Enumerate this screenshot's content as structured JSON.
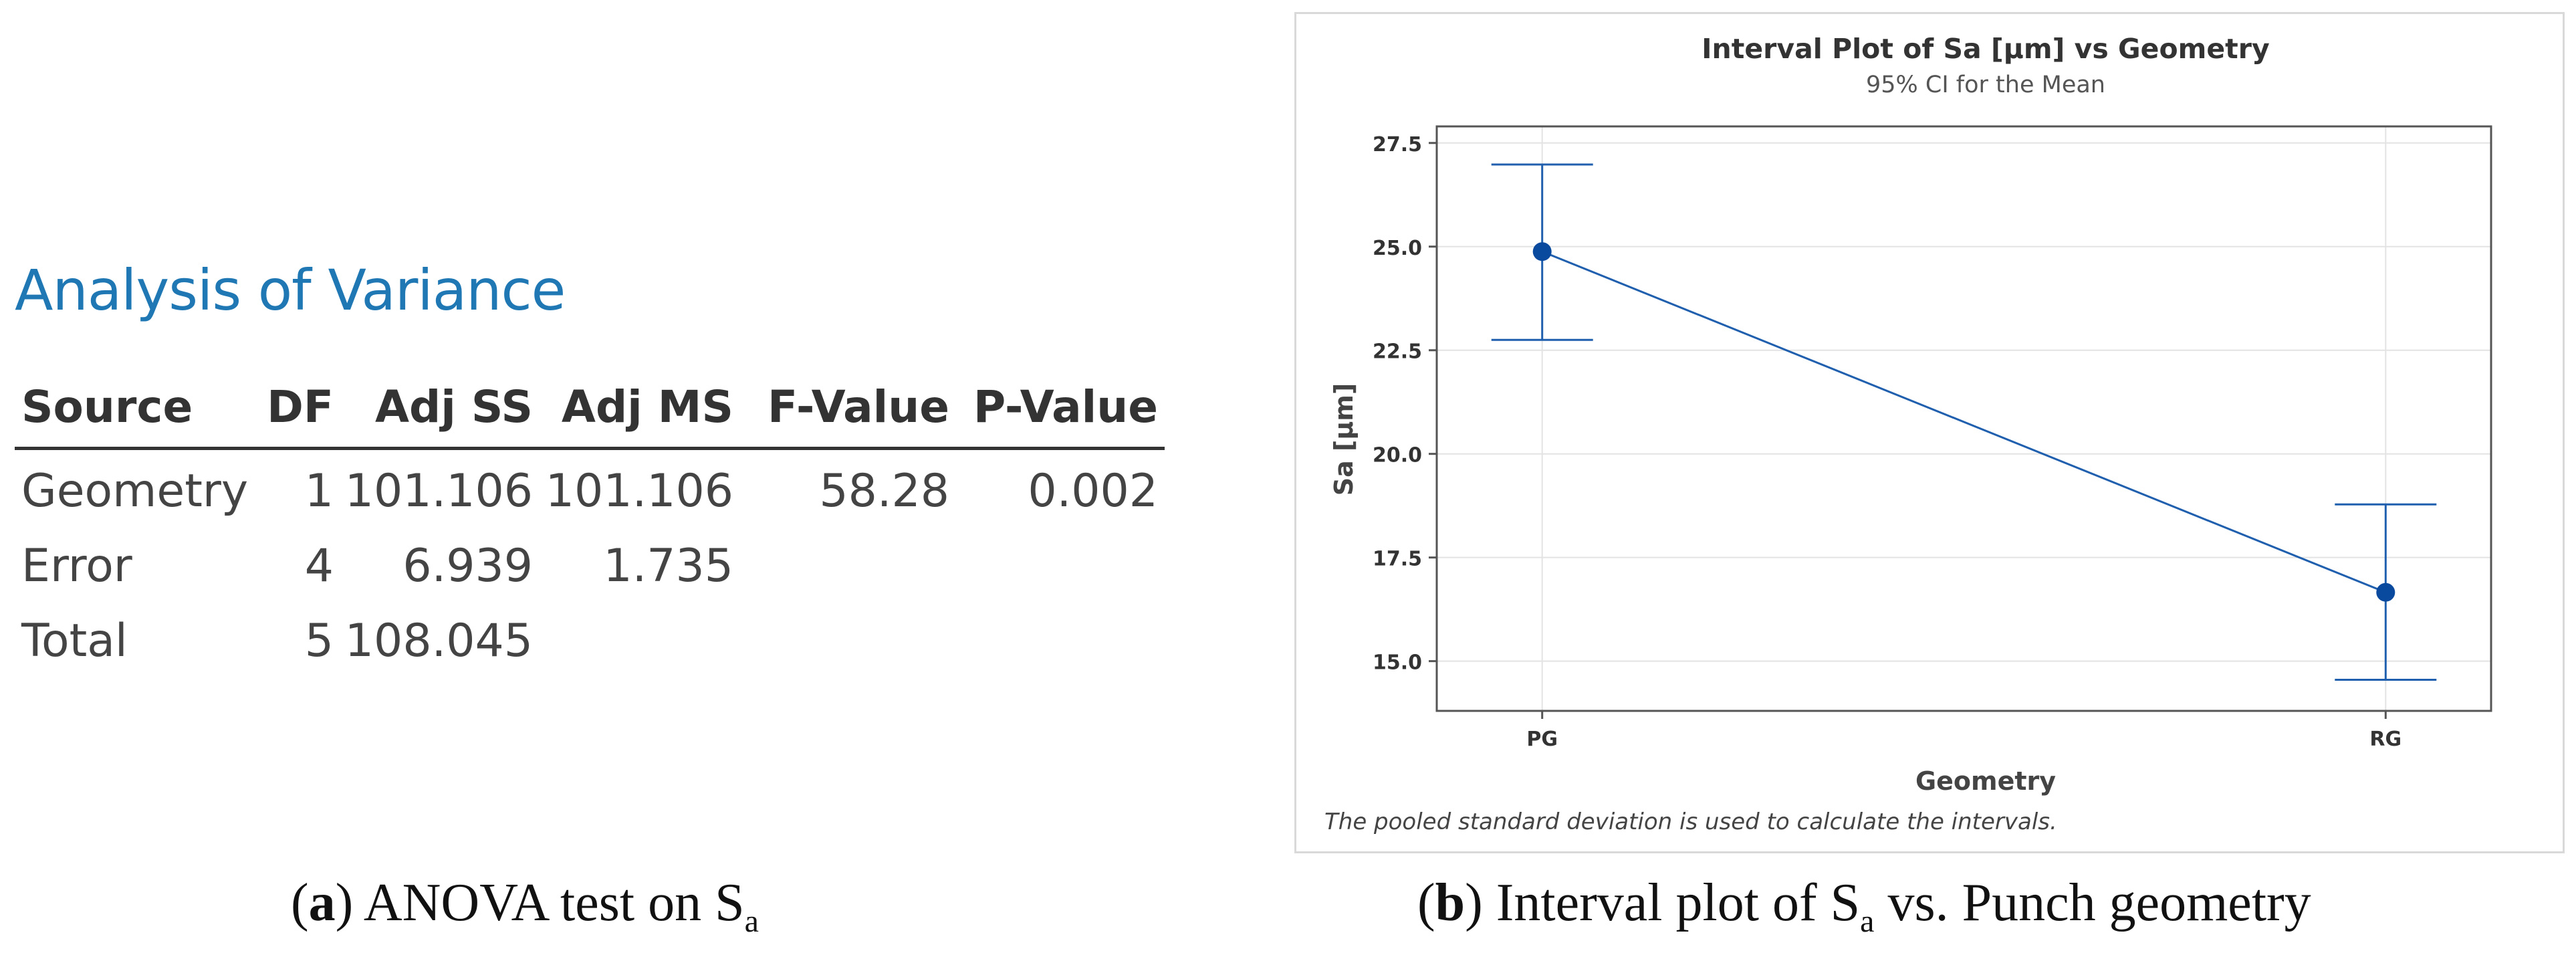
{
  "anova": {
    "heading": "Analysis of Variance",
    "columns": [
      "Source",
      "DF",
      "Adj SS",
      "Adj MS",
      "F-Value",
      "P-Value"
    ],
    "rows": [
      [
        "Geometry",
        "1",
        "101.106",
        "101.106",
        "58.28",
        "0.002"
      ],
      [
        "Error",
        "4",
        "6.939",
        "1.735",
        "",
        ""
      ],
      [
        "Total",
        "5",
        "108.045",
        "",
        "",
        ""
      ]
    ]
  },
  "captions": {
    "a_letter": "a",
    "a_text": " ANOVA test on S",
    "a_sub": "a",
    "b_letter": "b",
    "b_text1": " Interval plot of S",
    "b_sub": "a",
    "b_text2": " vs. Punch geometry"
  },
  "chart_data": {
    "type": "interval",
    "title": "Interval Plot of Sa [µm] vs Geometry",
    "subtitle": "95% CI for the Mean",
    "xlabel": "Geometry",
    "ylabel": "Sa [µm]",
    "categories": [
      "PG",
      "RG"
    ],
    "means": [
      24.88,
      16.66
    ],
    "ci_lower": [
      22.75,
      14.55
    ],
    "ci_upper": [
      26.98,
      18.78
    ],
    "ylim": [
      13.8,
      27.9
    ],
    "yticks": [
      15.0,
      17.5,
      20.0,
      22.5,
      25.0,
      27.5
    ],
    "ytick_labels": [
      "15.0",
      "17.5",
      "20.0",
      "22.5",
      "25.0",
      "27.5"
    ],
    "grid": true,
    "footnote": "The pooled standard deviation is used to calculate the intervals.",
    "colors": {
      "series": "#1f5fae",
      "point": "#0a4a9e",
      "grid": "#e3e3e3",
      "frame": "#555555"
    }
  }
}
